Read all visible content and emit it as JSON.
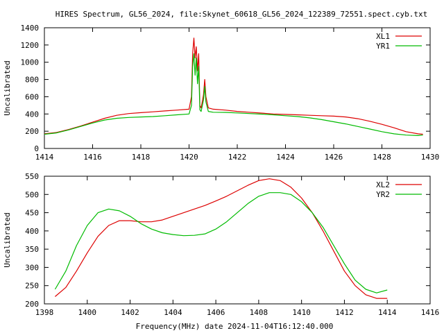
{
  "page": {
    "title": "HIRES Spectrum, GL56_2024, file:Skynet_60618_GL56_2024_122389_72551.spect.cyb.txt",
    "xlabel": "Frequency(MHz) date 2024-11-04T16:12:40.000"
  },
  "chart_data": [
    {
      "type": "line",
      "xlabel": "",
      "ylabel": "Uncalibrated",
      "xlim": [
        1414,
        1430
      ],
      "ylim": [
        0,
        1400
      ],
      "xticks": [
        "1414",
        "1416",
        "1418",
        "1420",
        "1422",
        "1424",
        "1426",
        "1428",
        "1430"
      ],
      "yticks": [
        "0",
        "200",
        "400",
        "600",
        "800",
        "1000",
        "1200",
        "1400"
      ],
      "legend_position": "top-right",
      "grid": false,
      "series": [
        {
          "name": "XL1",
          "color": "#dd0000",
          "x": [
            1414.0,
            1414.5,
            1415.0,
            1415.5,
            1416.0,
            1416.5,
            1417.0,
            1417.5,
            1418.0,
            1418.5,
            1419.0,
            1419.5,
            1420.0,
            1420.1,
            1420.15,
            1420.2,
            1420.25,
            1420.3,
            1420.35,
            1420.4,
            1420.45,
            1420.5,
            1420.6,
            1420.65,
            1420.7,
            1420.8,
            1421.0,
            1421.5,
            1422.0,
            1422.5,
            1423.0,
            1423.5,
            1424.0,
            1424.5,
            1425.0,
            1425.5,
            1426.0,
            1426.5,
            1427.0,
            1427.5,
            1428.0,
            1428.5,
            1429.0,
            1429.5,
            1429.7
          ],
          "y": [
            170,
            185,
            220,
            260,
            305,
            350,
            385,
            405,
            415,
            425,
            435,
            445,
            455,
            600,
            1100,
            1280,
            1050,
            1180,
            900,
            1100,
            500,
            470,
            620,
            800,
            600,
            470,
            455,
            445,
            430,
            420,
            410,
            400,
            395,
            390,
            385,
            380,
            375,
            365,
            345,
            315,
            280,
            240,
            195,
            170,
            165
          ]
        },
        {
          "name": "YR1",
          "color": "#00bb00",
          "x": [
            1414.0,
            1414.5,
            1415.0,
            1415.5,
            1416.0,
            1416.5,
            1417.0,
            1417.5,
            1418.0,
            1418.5,
            1419.0,
            1419.5,
            1420.0,
            1420.1,
            1420.15,
            1420.2,
            1420.25,
            1420.3,
            1420.35,
            1420.4,
            1420.45,
            1420.5,
            1420.6,
            1420.65,
            1420.7,
            1420.8,
            1421.0,
            1421.5,
            1422.0,
            1422.5,
            1423.0,
            1423.5,
            1424.0,
            1424.5,
            1425.0,
            1425.5,
            1426.0,
            1426.5,
            1427.0,
            1427.5,
            1428.0,
            1428.5,
            1429.0,
            1429.5,
            1429.7
          ],
          "y": [
            165,
            180,
            215,
            255,
            295,
            330,
            350,
            360,
            365,
            370,
            380,
            390,
            400,
            500,
            950,
            1100,
            850,
            1050,
            750,
            950,
            450,
            430,
            560,
            720,
            540,
            430,
            420,
            418,
            412,
            405,
            398,
            390,
            380,
            370,
            355,
            335,
            310,
            285,
            255,
            225,
            195,
            170,
            155,
            150,
            155
          ]
        }
      ]
    },
    {
      "type": "line",
      "xlabel": "",
      "ylabel": "Uncalibrated",
      "xlim": [
        1398,
        1416
      ],
      "ylim": [
        200,
        550
      ],
      "xticks": [
        "1398",
        "1400",
        "1402",
        "1404",
        "1406",
        "1408",
        "1410",
        "1412",
        "1414",
        "1416"
      ],
      "yticks": [
        "200",
        "250",
        "300",
        "350",
        "400",
        "450",
        "500",
        "550"
      ],
      "legend_position": "top-right",
      "grid": false,
      "series": [
        {
          "name": "XL2",
          "color": "#dd0000",
          "x": [
            1398.5,
            1399.0,
            1399.5,
            1400.0,
            1400.5,
            1401.0,
            1401.5,
            1402.0,
            1402.5,
            1403.0,
            1403.5,
            1404.0,
            1404.5,
            1405.0,
            1405.5,
            1406.0,
            1406.5,
            1407.0,
            1407.5,
            1408.0,
            1408.5,
            1409.0,
            1409.5,
            1410.0,
            1410.5,
            1411.0,
            1411.5,
            1412.0,
            1412.5,
            1413.0,
            1413.5,
            1414.0
          ],
          "y": [
            220,
            245,
            290,
            340,
            385,
            415,
            428,
            428,
            425,
            425,
            430,
            440,
            450,
            460,
            470,
            482,
            495,
            510,
            525,
            538,
            543,
            538,
            520,
            490,
            450,
            400,
            345,
            290,
            250,
            225,
            215,
            215
          ]
        },
        {
          "name": "YR2",
          "color": "#00bb00",
          "x": [
            1398.5,
            1399.0,
            1399.5,
            1400.0,
            1400.5,
            1401.0,
            1401.5,
            1402.0,
            1402.5,
            1403.0,
            1403.5,
            1404.0,
            1404.5,
            1405.0,
            1405.5,
            1406.0,
            1406.5,
            1407.0,
            1407.5,
            1408.0,
            1408.5,
            1409.0,
            1409.5,
            1410.0,
            1410.5,
            1411.0,
            1411.5,
            1412.0,
            1412.5,
            1413.0,
            1413.5,
            1414.0
          ],
          "y": [
            240,
            290,
            360,
            415,
            450,
            460,
            455,
            440,
            420,
            405,
            395,
            390,
            387,
            388,
            392,
            405,
            425,
            450,
            475,
            495,
            505,
            505,
            500,
            480,
            450,
            410,
            360,
            310,
            265,
            240,
            230,
            238
          ]
        }
      ]
    }
  ]
}
